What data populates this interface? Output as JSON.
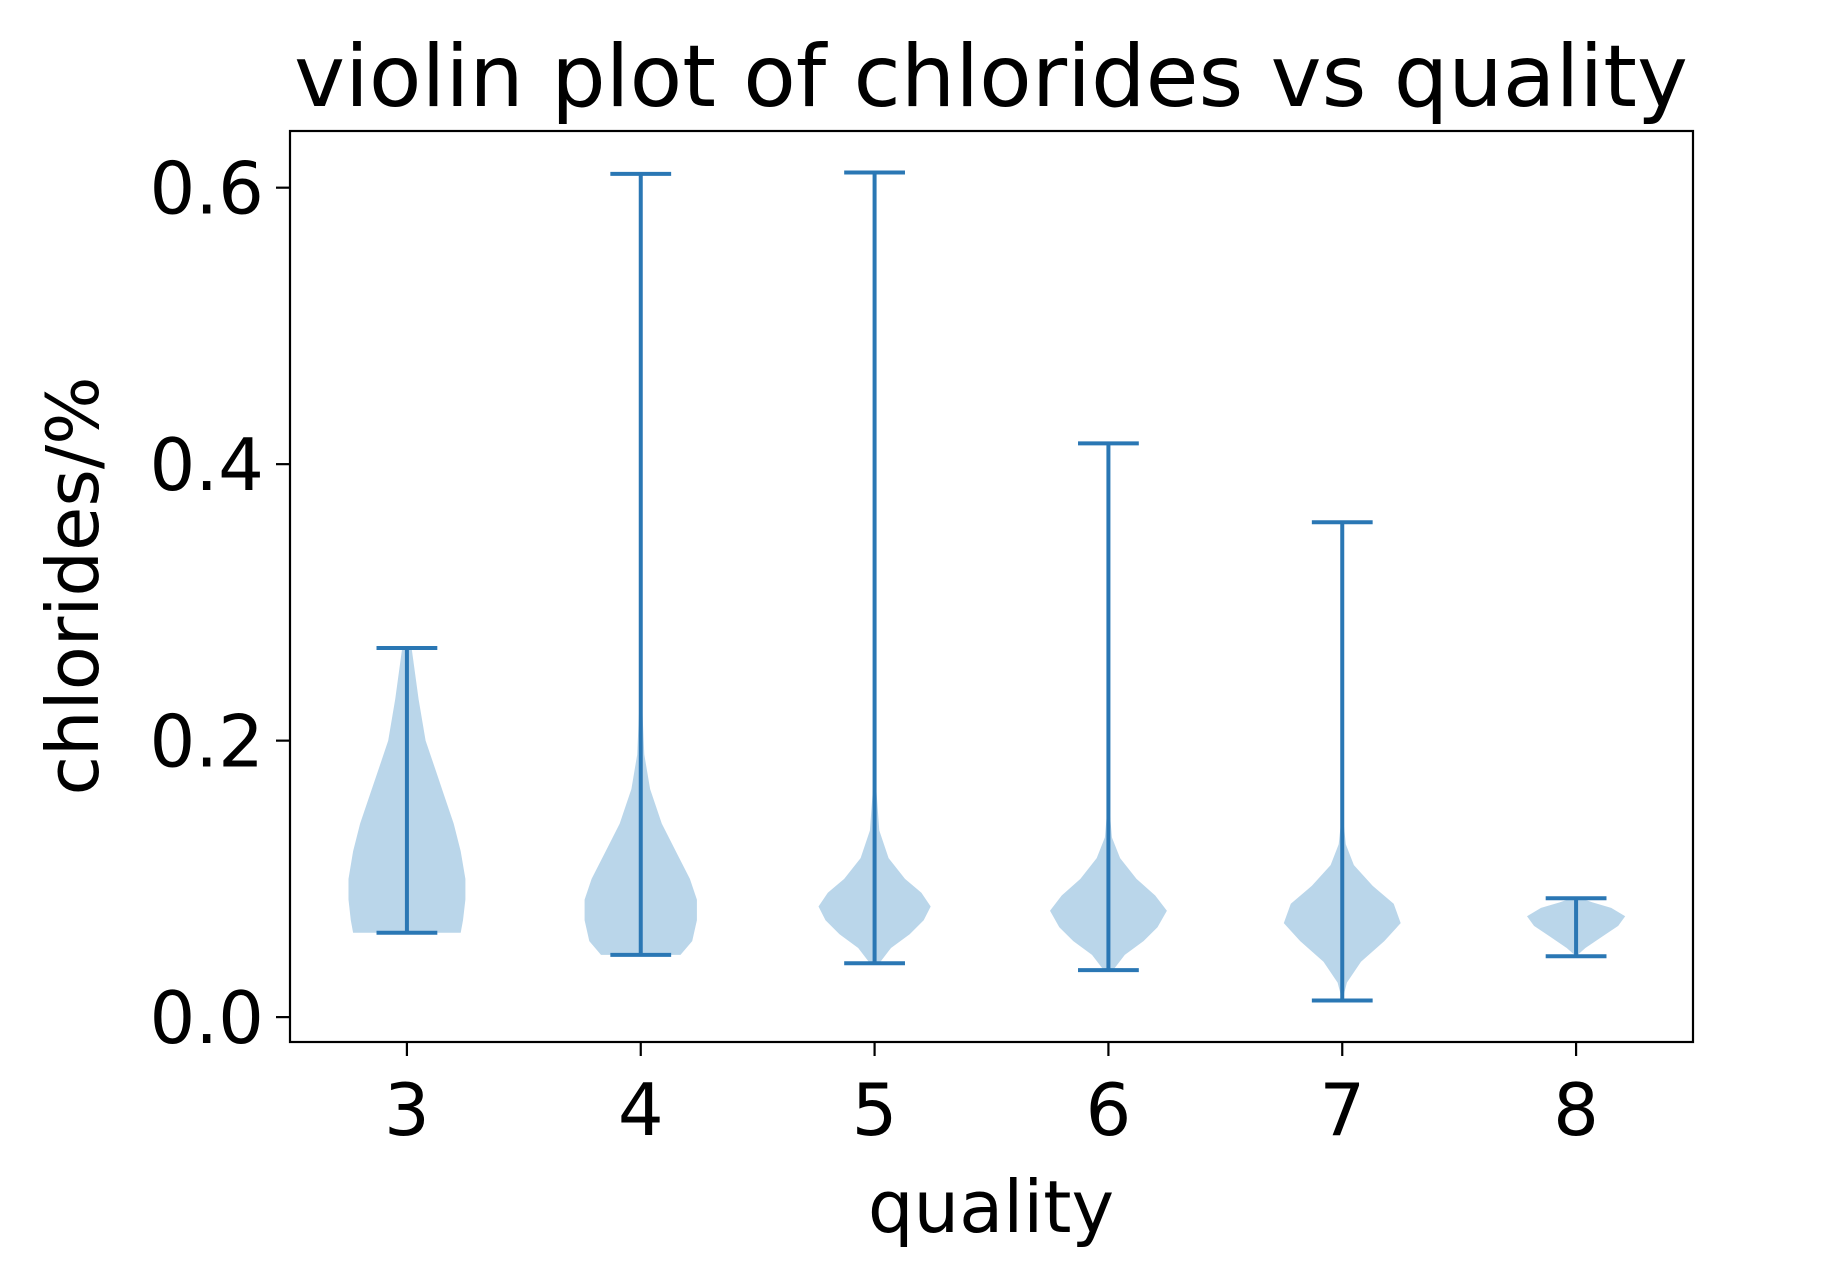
{
  "chart_data": {
    "type": "violin",
    "title": "violin plot of chlorides vs quality",
    "xlabel": "quality",
    "ylabel": "chlorides/%",
    "categories": [
      "3",
      "4",
      "5",
      "6",
      "7",
      "8"
    ],
    "ylim": [
      -0.018,
      0.641
    ],
    "yticks": [
      0.0,
      0.2,
      0.4,
      0.6
    ],
    "ytick_labels": [
      "0.0",
      "0.2",
      "0.4",
      "0.6"
    ],
    "grid": false,
    "colors": {
      "line": "#2a77b4",
      "fill": "#bad6ea",
      "axis": "#000000"
    },
    "violins": [
      {
        "category": "3",
        "min": 0.061,
        "max": 0.267,
        "density": [
          {
            "y": 0.061,
            "hw": 0.23
          },
          {
            "y": 0.07,
            "hw": 0.24
          },
          {
            "y": 0.085,
            "hw": 0.25
          },
          {
            "y": 0.1,
            "hw": 0.25
          },
          {
            "y": 0.12,
            "hw": 0.23
          },
          {
            "y": 0.14,
            "hw": 0.2
          },
          {
            "y": 0.16,
            "hw": 0.16
          },
          {
            "y": 0.18,
            "hw": 0.12
          },
          {
            "y": 0.2,
            "hw": 0.08
          },
          {
            "y": 0.23,
            "hw": 0.05
          },
          {
            "y": 0.267,
            "hw": 0.02
          }
        ]
      },
      {
        "category": "4",
        "min": 0.045,
        "max": 0.61,
        "density": [
          {
            "y": 0.045,
            "hw": 0.17
          },
          {
            "y": 0.055,
            "hw": 0.22
          },
          {
            "y": 0.07,
            "hw": 0.24
          },
          {
            "y": 0.085,
            "hw": 0.24
          },
          {
            "y": 0.1,
            "hw": 0.21
          },
          {
            "y": 0.12,
            "hw": 0.15
          },
          {
            "y": 0.14,
            "hw": 0.09
          },
          {
            "y": 0.165,
            "hw": 0.04
          },
          {
            "y": 0.19,
            "hw": 0.015
          },
          {
            "y": 0.23,
            "hw": 0.005
          },
          {
            "y": 0.3,
            "hw": 0.0
          }
        ]
      },
      {
        "category": "5",
        "min": 0.039,
        "max": 0.611,
        "density": [
          {
            "y": 0.039,
            "hw": 0.02
          },
          {
            "y": 0.05,
            "hw": 0.07
          },
          {
            "y": 0.06,
            "hw": 0.15
          },
          {
            "y": 0.07,
            "hw": 0.21
          },
          {
            "y": 0.08,
            "hw": 0.24
          },
          {
            "y": 0.09,
            "hw": 0.2
          },
          {
            "y": 0.1,
            "hw": 0.13
          },
          {
            "y": 0.115,
            "hw": 0.06
          },
          {
            "y": 0.135,
            "hw": 0.02
          },
          {
            "y": 0.17,
            "hw": 0.005
          },
          {
            "y": 0.22,
            "hw": 0.0
          }
        ]
      },
      {
        "category": "6",
        "min": 0.034,
        "max": 0.415,
        "density": [
          {
            "y": 0.034,
            "hw": 0.02
          },
          {
            "y": 0.045,
            "hw": 0.07
          },
          {
            "y": 0.055,
            "hw": 0.15
          },
          {
            "y": 0.065,
            "hw": 0.21
          },
          {
            "y": 0.077,
            "hw": 0.25
          },
          {
            "y": 0.088,
            "hw": 0.2
          },
          {
            "y": 0.1,
            "hw": 0.12
          },
          {
            "y": 0.115,
            "hw": 0.05
          },
          {
            "y": 0.13,
            "hw": 0.015
          },
          {
            "y": 0.16,
            "hw": 0.0
          }
        ]
      },
      {
        "category": "7",
        "min": 0.012,
        "max": 0.358,
        "density": [
          {
            "y": 0.012,
            "hw": 0.0
          },
          {
            "y": 0.025,
            "hw": 0.02
          },
          {
            "y": 0.04,
            "hw": 0.08
          },
          {
            "y": 0.055,
            "hw": 0.18
          },
          {
            "y": 0.068,
            "hw": 0.25
          },
          {
            "y": 0.082,
            "hw": 0.22
          },
          {
            "y": 0.095,
            "hw": 0.13
          },
          {
            "y": 0.11,
            "hw": 0.05
          },
          {
            "y": 0.125,
            "hw": 0.015
          },
          {
            "y": 0.15,
            "hw": 0.0
          }
        ]
      },
      {
        "category": "8",
        "min": 0.044,
        "max": 0.086,
        "density": [
          {
            "y": 0.044,
            "hw": 0.0
          },
          {
            "y": 0.05,
            "hw": 0.04
          },
          {
            "y": 0.058,
            "hw": 0.11
          },
          {
            "y": 0.066,
            "hw": 0.18
          },
          {
            "y": 0.073,
            "hw": 0.21
          },
          {
            "y": 0.079,
            "hw": 0.15
          },
          {
            "y": 0.083,
            "hw": 0.07
          },
          {
            "y": 0.086,
            "hw": 0.02
          }
        ]
      }
    ]
  }
}
